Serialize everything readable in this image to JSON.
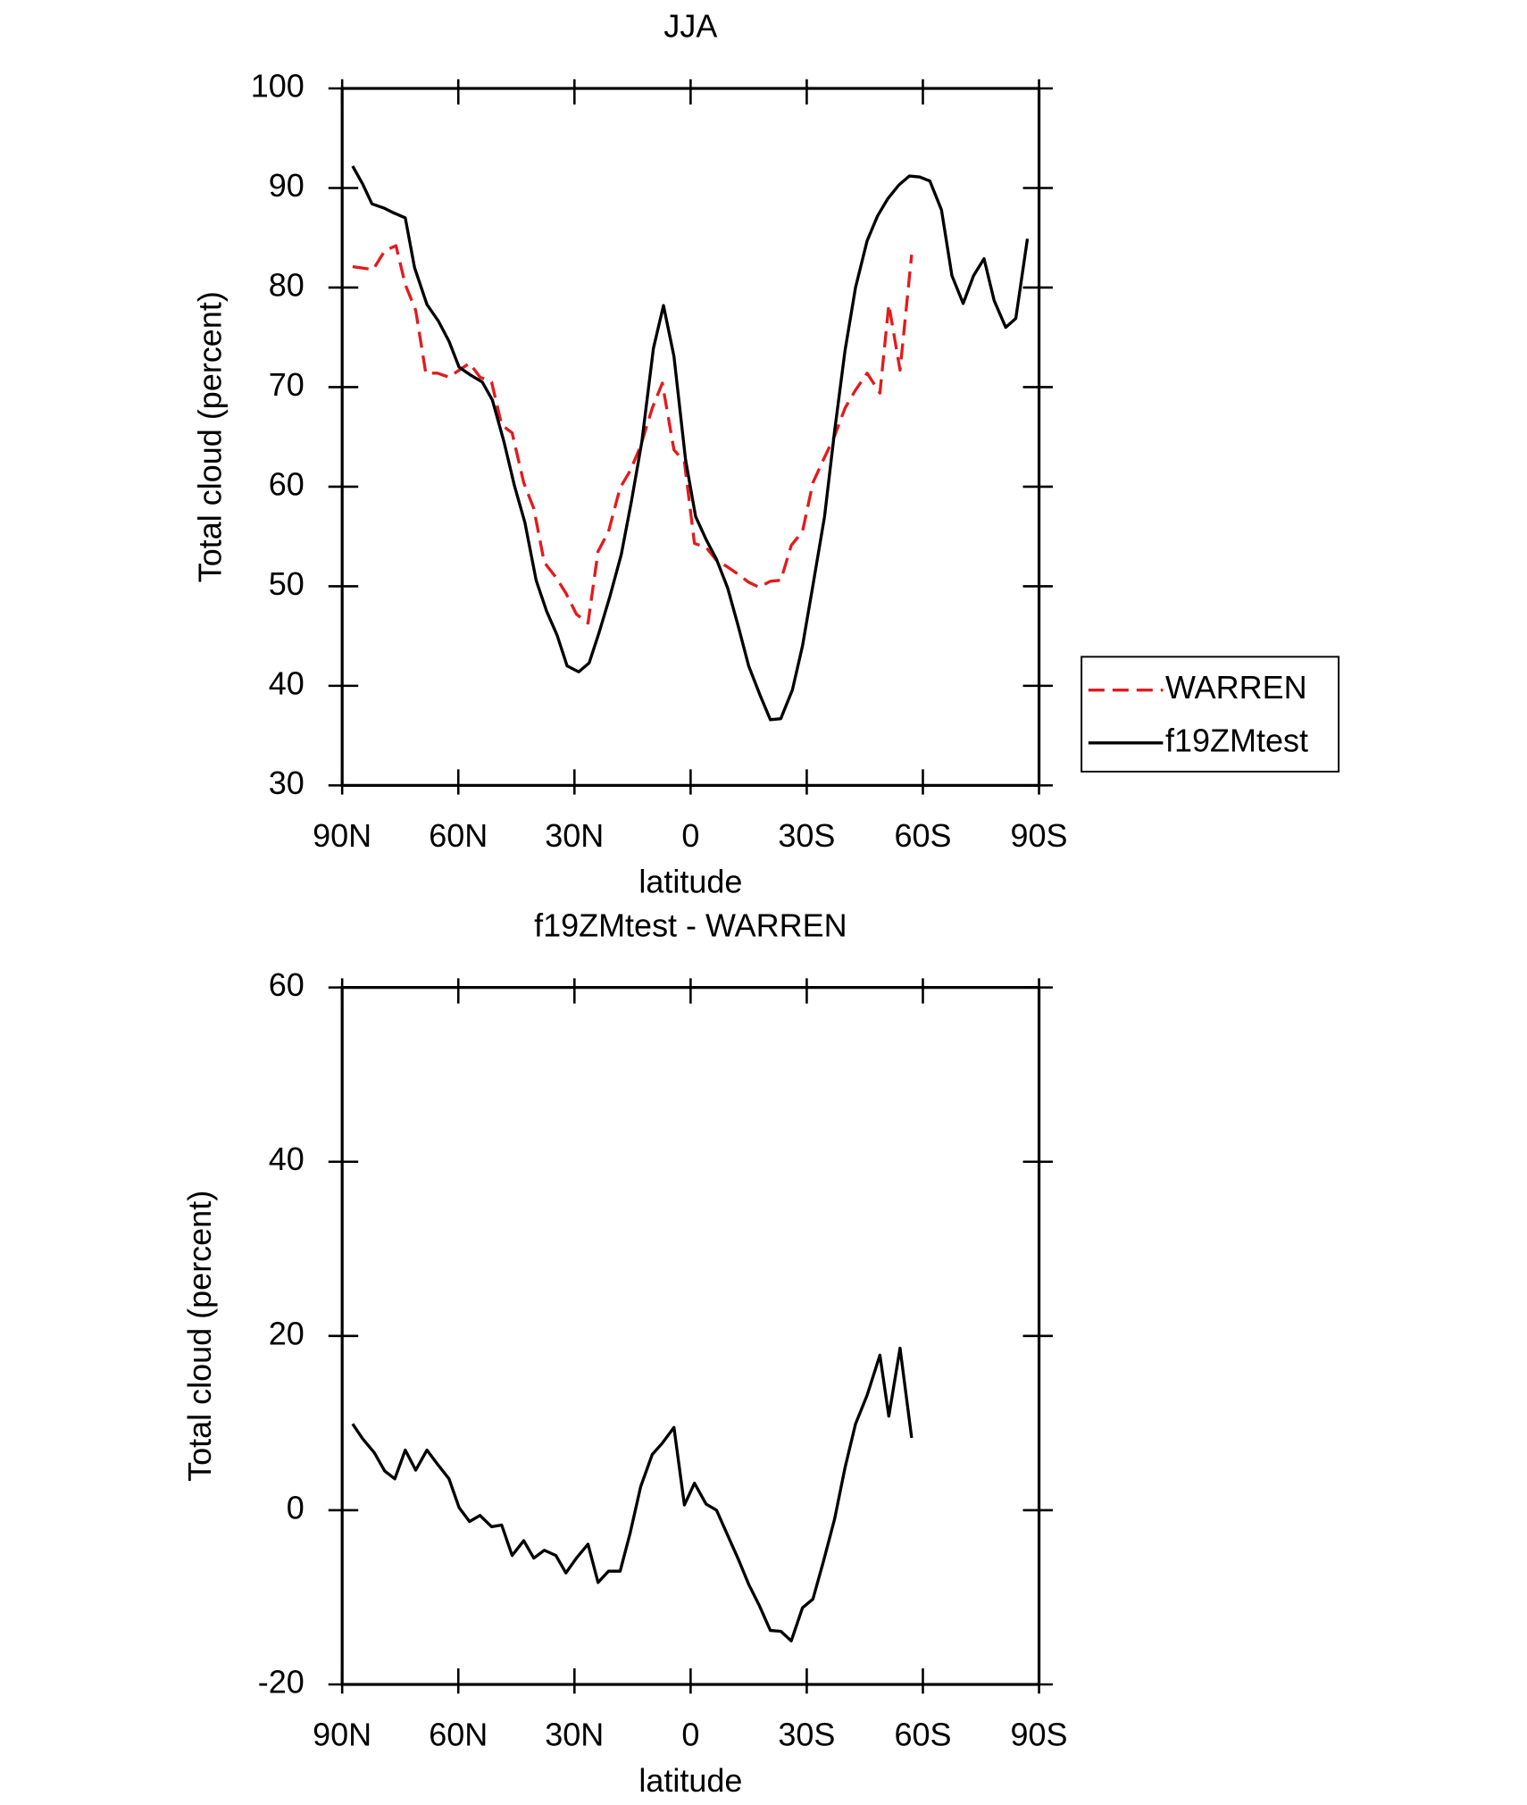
{
  "chart_data": [
    {
      "type": "line",
      "title": "JJA",
      "x_label": "latitude",
      "y_label": "Total cloud (percent)",
      "xlim": [
        90,
        -90
      ],
      "ylim": [
        30,
        100
      ],
      "xticks": [
        {
          "value": 90,
          "label": "90N"
        },
        {
          "value": 60,
          "label": "60N"
        },
        {
          "value": 30,
          "label": "30N"
        },
        0,
        {
          "value": -30,
          "label": "30S"
        },
        {
          "value": -60,
          "label": "60S"
        },
        {
          "value": -90,
          "label": "90S"
        }
      ],
      "yticks": [
        30,
        40,
        50,
        60,
        70,
        80,
        90,
        100
      ],
      "legend": "right",
      "series": [
        {
          "name": "WARREN",
          "color": "#e41a1c",
          "line_style": "dashed",
          "x": [
            87.3,
            82.0,
            79.0,
            76.1,
            73.7,
            71.0,
            68.4,
            65.4,
            62.4,
            59.8,
            57.1,
            54.4,
            51.4,
            48.8,
            46.1,
            43.1,
            40.5,
            37.8,
            34.8,
            32.2,
            29.5,
            26.5,
            23.9,
            21.2,
            18.2,
            15.6,
            12.9,
            9.9,
            7.3,
            4.3,
            1.6,
            -1.0,
            -4.0,
            -6.7,
            -9.3,
            -12.3,
            -15.0,
            -17.7,
            -20.6,
            -23.3,
            -26.0,
            -28.9,
            -31.6,
            -34.3,
            -37.2,
            -39.9,
            -42.6,
            -45.6,
            -48.9,
            -51.2,
            -54.1,
            -57.1
          ],
          "values": [
            82.1,
            81.8,
            83.7,
            84.2,
            80.3,
            77.7,
            71.4,
            71.4,
            71.0,
            71.7,
            72.4,
            71.0,
            70.5,
            66.2,
            65.4,
            60.4,
            57.8,
            52.4,
            50.9,
            49.3,
            47.2,
            46.3,
            53.5,
            55.5,
            59.9,
            61.6,
            64.1,
            67.9,
            70.4,
            63.7,
            62.5,
            54.3,
            53.9,
            52.6,
            52.0,
            51.2,
            50.4,
            49.9,
            50.5,
            50.6,
            54.1,
            55.5,
            60.4,
            62.7,
            65.1,
            67.9,
            69.7,
            71.4,
            69.4,
            78.3,
            71.7,
            83.3
          ]
        },
        {
          "name": "f19ZMtest",
          "color": "#000000",
          "line_style": "solid",
          "x": [
            87.3,
            84.7,
            82.3,
            79.3,
            76.7,
            73.7,
            71.3,
            68.1,
            65.1,
            62.4,
            59.8,
            56.8,
            53.8,
            51.2,
            48.2,
            45.5,
            42.8,
            39.9,
            37.2,
            34.5,
            31.9,
            28.9,
            26.2,
            23.6,
            20.9,
            17.9,
            15.3,
            12.6,
            9.6,
            7.0,
            4.3,
            1.3,
            -1.3,
            -4.0,
            -6.7,
            -9.6,
            -12.3,
            -15.0,
            -17.9,
            -20.6,
            -23.3,
            -26.3,
            -28.9,
            -31.6,
            -34.6,
            -37.2,
            -39.9,
            -42.6,
            -45.6,
            -48.3,
            -50.9,
            -53.8,
            -56.5,
            -59.2,
            -61.8,
            -64.8,
            -67.5,
            -70.4,
            -73.1,
            -75.8,
            -78.4,
            -81.4,
            -84.0,
            -87.0
          ],
          "values": [
            92.2,
            90.4,
            88.4,
            88.0,
            87.5,
            87.0,
            82.0,
            78.3,
            76.6,
            74.6,
            72.0,
            71.2,
            70.5,
            68.7,
            64.5,
            60.1,
            56.4,
            50.6,
            47.5,
            45.1,
            42.0,
            41.4,
            42.3,
            45.4,
            48.9,
            53.2,
            58.5,
            64.5,
            73.9,
            78.2,
            73.1,
            62.7,
            57.0,
            54.7,
            52.7,
            49.8,
            46.0,
            42.0,
            39.1,
            36.6,
            36.7,
            39.6,
            44.0,
            50.1,
            57.0,
            65.6,
            73.7,
            80.0,
            84.7,
            87.2,
            88.9,
            90.3,
            91.2,
            91.1,
            90.7,
            87.8,
            81.2,
            78.4,
            81.2,
            82.9,
            78.7,
            76.0,
            76.9,
            84.9
          ]
        }
      ]
    },
    {
      "type": "line",
      "title": "f19ZMtest - WARREN",
      "x_label": "latitude",
      "y_label": "Total cloud (percent)",
      "xlim": [
        90,
        -90
      ],
      "ylim": [
        -20,
        60
      ],
      "xticks": [
        {
          "value": 90,
          "label": "90N"
        },
        {
          "value": 60,
          "label": "60N"
        },
        {
          "value": 30,
          "label": "30N"
        },
        0,
        {
          "value": -30,
          "label": "30S"
        },
        {
          "value": -60,
          "label": "60S"
        },
        {
          "value": -90,
          "label": "90S"
        }
      ],
      "yticks": [
        -20,
        0,
        20,
        40,
        60
      ],
      "color": "#000000",
      "line_style": "solid",
      "x": [
        87.3,
        84.7,
        81.7,
        79.0,
        76.4,
        73.7,
        71.0,
        68.1,
        65.4,
        62.4,
        59.8,
        57.1,
        54.4,
        51.4,
        48.8,
        46.1,
        43.1,
        40.5,
        37.8,
        34.8,
        32.2,
        29.5,
        26.5,
        23.9,
        21.2,
        18.2,
        15.6,
        12.9,
        9.9,
        7.3,
        4.3,
        1.6,
        -1.0,
        -4.0,
        -6.7,
        -9.3,
        -12.3,
        -15.0,
        -17.7,
        -20.6,
        -23.3,
        -26.0,
        -28.9,
        -31.6,
        -34.3,
        -37.2,
        -39.9,
        -42.6,
        -45.6,
        -48.9,
        -51.2,
        -54.1,
        -57.1
      ],
      "values": [
        9.9,
        8.2,
        6.6,
        4.5,
        3.6,
        6.9,
        4.6,
        6.9,
        5.3,
        3.6,
        0.3,
        -1.3,
        -0.6,
        -1.9,
        -1.7,
        -5.2,
        -3.5,
        -5.5,
        -4.6,
        -5.2,
        -7.2,
        -5.5,
        -3.9,
        -8.3,
        -7.0,
        -7.0,
        -2.6,
        2.7,
        6.4,
        7.7,
        9.5,
        0.6,
        3.1,
        0.7,
        0.0,
        -2.6,
        -5.6,
        -8.5,
        -10.9,
        -13.8,
        -13.9,
        -15.0,
        -11.2,
        -10.2,
        -5.9,
        -1.0,
        4.9,
        9.9,
        13.2,
        17.8,
        10.8,
        18.6,
        8.3
      ]
    }
  ]
}
